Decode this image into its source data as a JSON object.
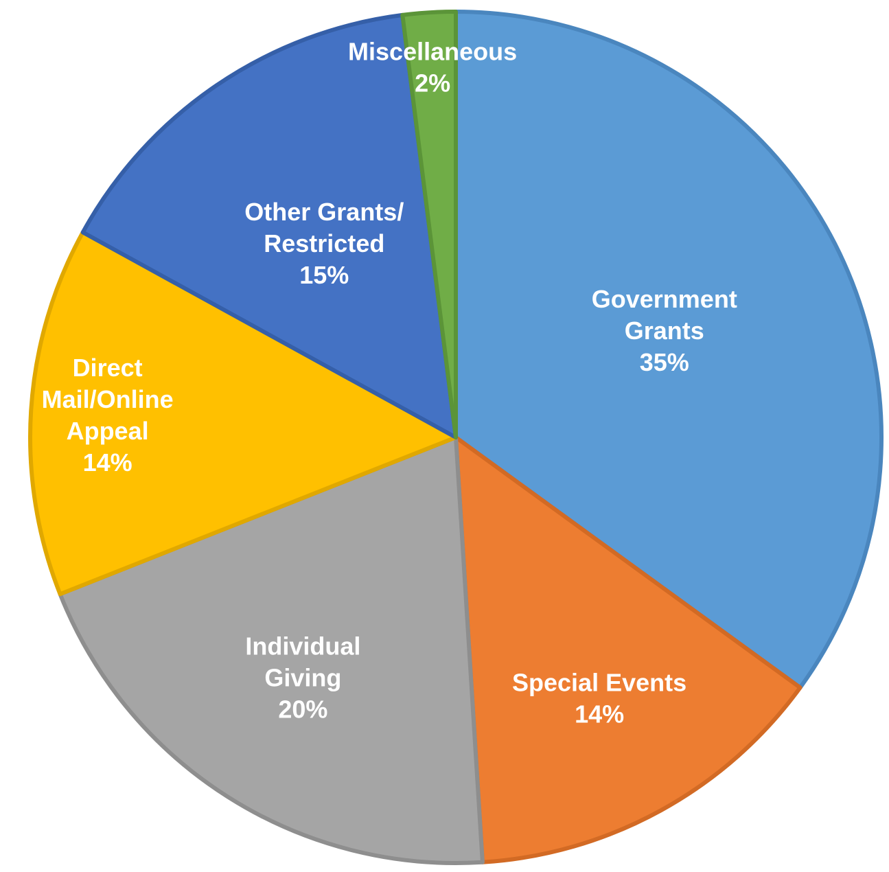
{
  "chart_data": {
    "type": "pie",
    "start_angle_deg": 0,
    "direction": "clockwise",
    "slices": [
      {
        "name_lines": [
          "Government",
          "Grants"
        ],
        "percent_label": "35%",
        "value": 35,
        "color": "#5B9BD5",
        "border_color": "#4A86BE"
      },
      {
        "name_lines": [
          "Special Events"
        ],
        "percent_label": "14%",
        "value": 14,
        "color": "#ED7D31",
        "border_color": "#D26A24"
      },
      {
        "name_lines": [
          "Individual",
          "Giving"
        ],
        "percent_label": "20%",
        "value": 20,
        "color": "#A5A5A5",
        "border_color": "#8E8E8E"
      },
      {
        "name_lines": [
          "Direct",
          "Mail/Online",
          "Appeal"
        ],
        "percent_label": "14%",
        "value": 14,
        "color": "#FFC000",
        "border_color": "#E0A800"
      },
      {
        "name_lines": [
          "Other Grants/",
          "Restricted"
        ],
        "percent_label": "15%",
        "value": 15,
        "color": "#4472C4",
        "border_color": "#355FA8"
      },
      {
        "name_lines": [
          "Miscellaneous"
        ],
        "percent_label": "2%",
        "value": 2,
        "color": "#70AD47",
        "border_color": "#5B9438"
      }
    ]
  }
}
